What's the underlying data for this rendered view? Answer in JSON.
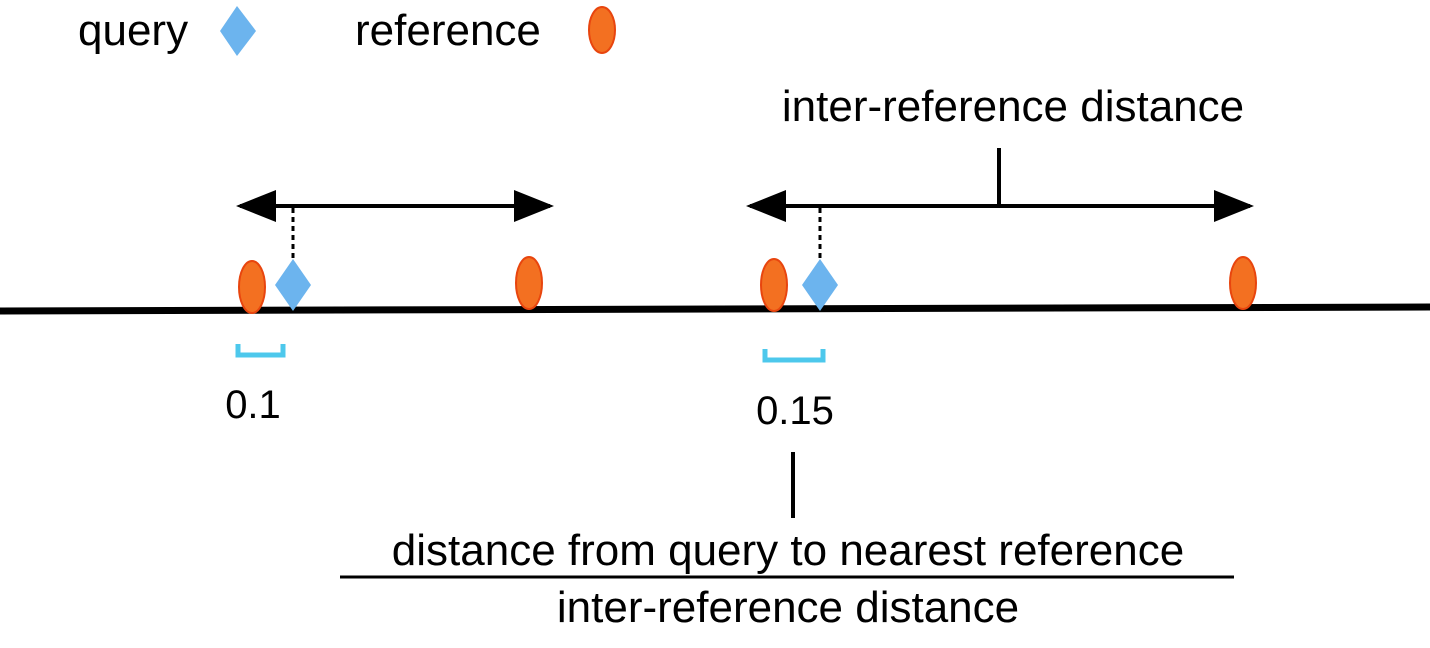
{
  "legend": {
    "query_label": "query",
    "reference_label": "reference"
  },
  "annotations": {
    "inter_reference_label": "inter-reference distance",
    "ratio_left": "0.1",
    "ratio_right": "0.15",
    "formula_numerator": "distance from query to nearest reference",
    "formula_denominator": "inter-reference distance"
  },
  "colors": {
    "query": "#6cb4ee",
    "reference_fill": "#f37021",
    "reference_stroke": "#e8450e",
    "bracket": "#4dc8ec",
    "line": "#000000"
  },
  "icons": {
    "query": "diamond-icon",
    "reference": "ellipse-icon"
  }
}
